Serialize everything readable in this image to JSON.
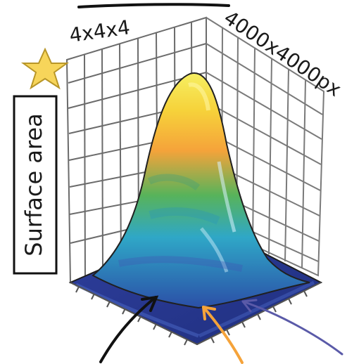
{
  "labels": {
    "top_left": "4x4x4",
    "top_right": "4000x4000px",
    "vertical": "Surface area"
  },
  "icons": {
    "star": "star-icon"
  },
  "colors": {
    "star": "#f7d55a",
    "peak_top": "#f6e03a",
    "peak_orange": "#f5a33a",
    "mid_green": "#58b35a",
    "mid_teal": "#2fa7c7",
    "base_blue": "#2b3f9a",
    "arrow_black": "#111111",
    "arrow_orange": "#f5a33a",
    "arrow_purple": "#5a5aa8"
  }
}
